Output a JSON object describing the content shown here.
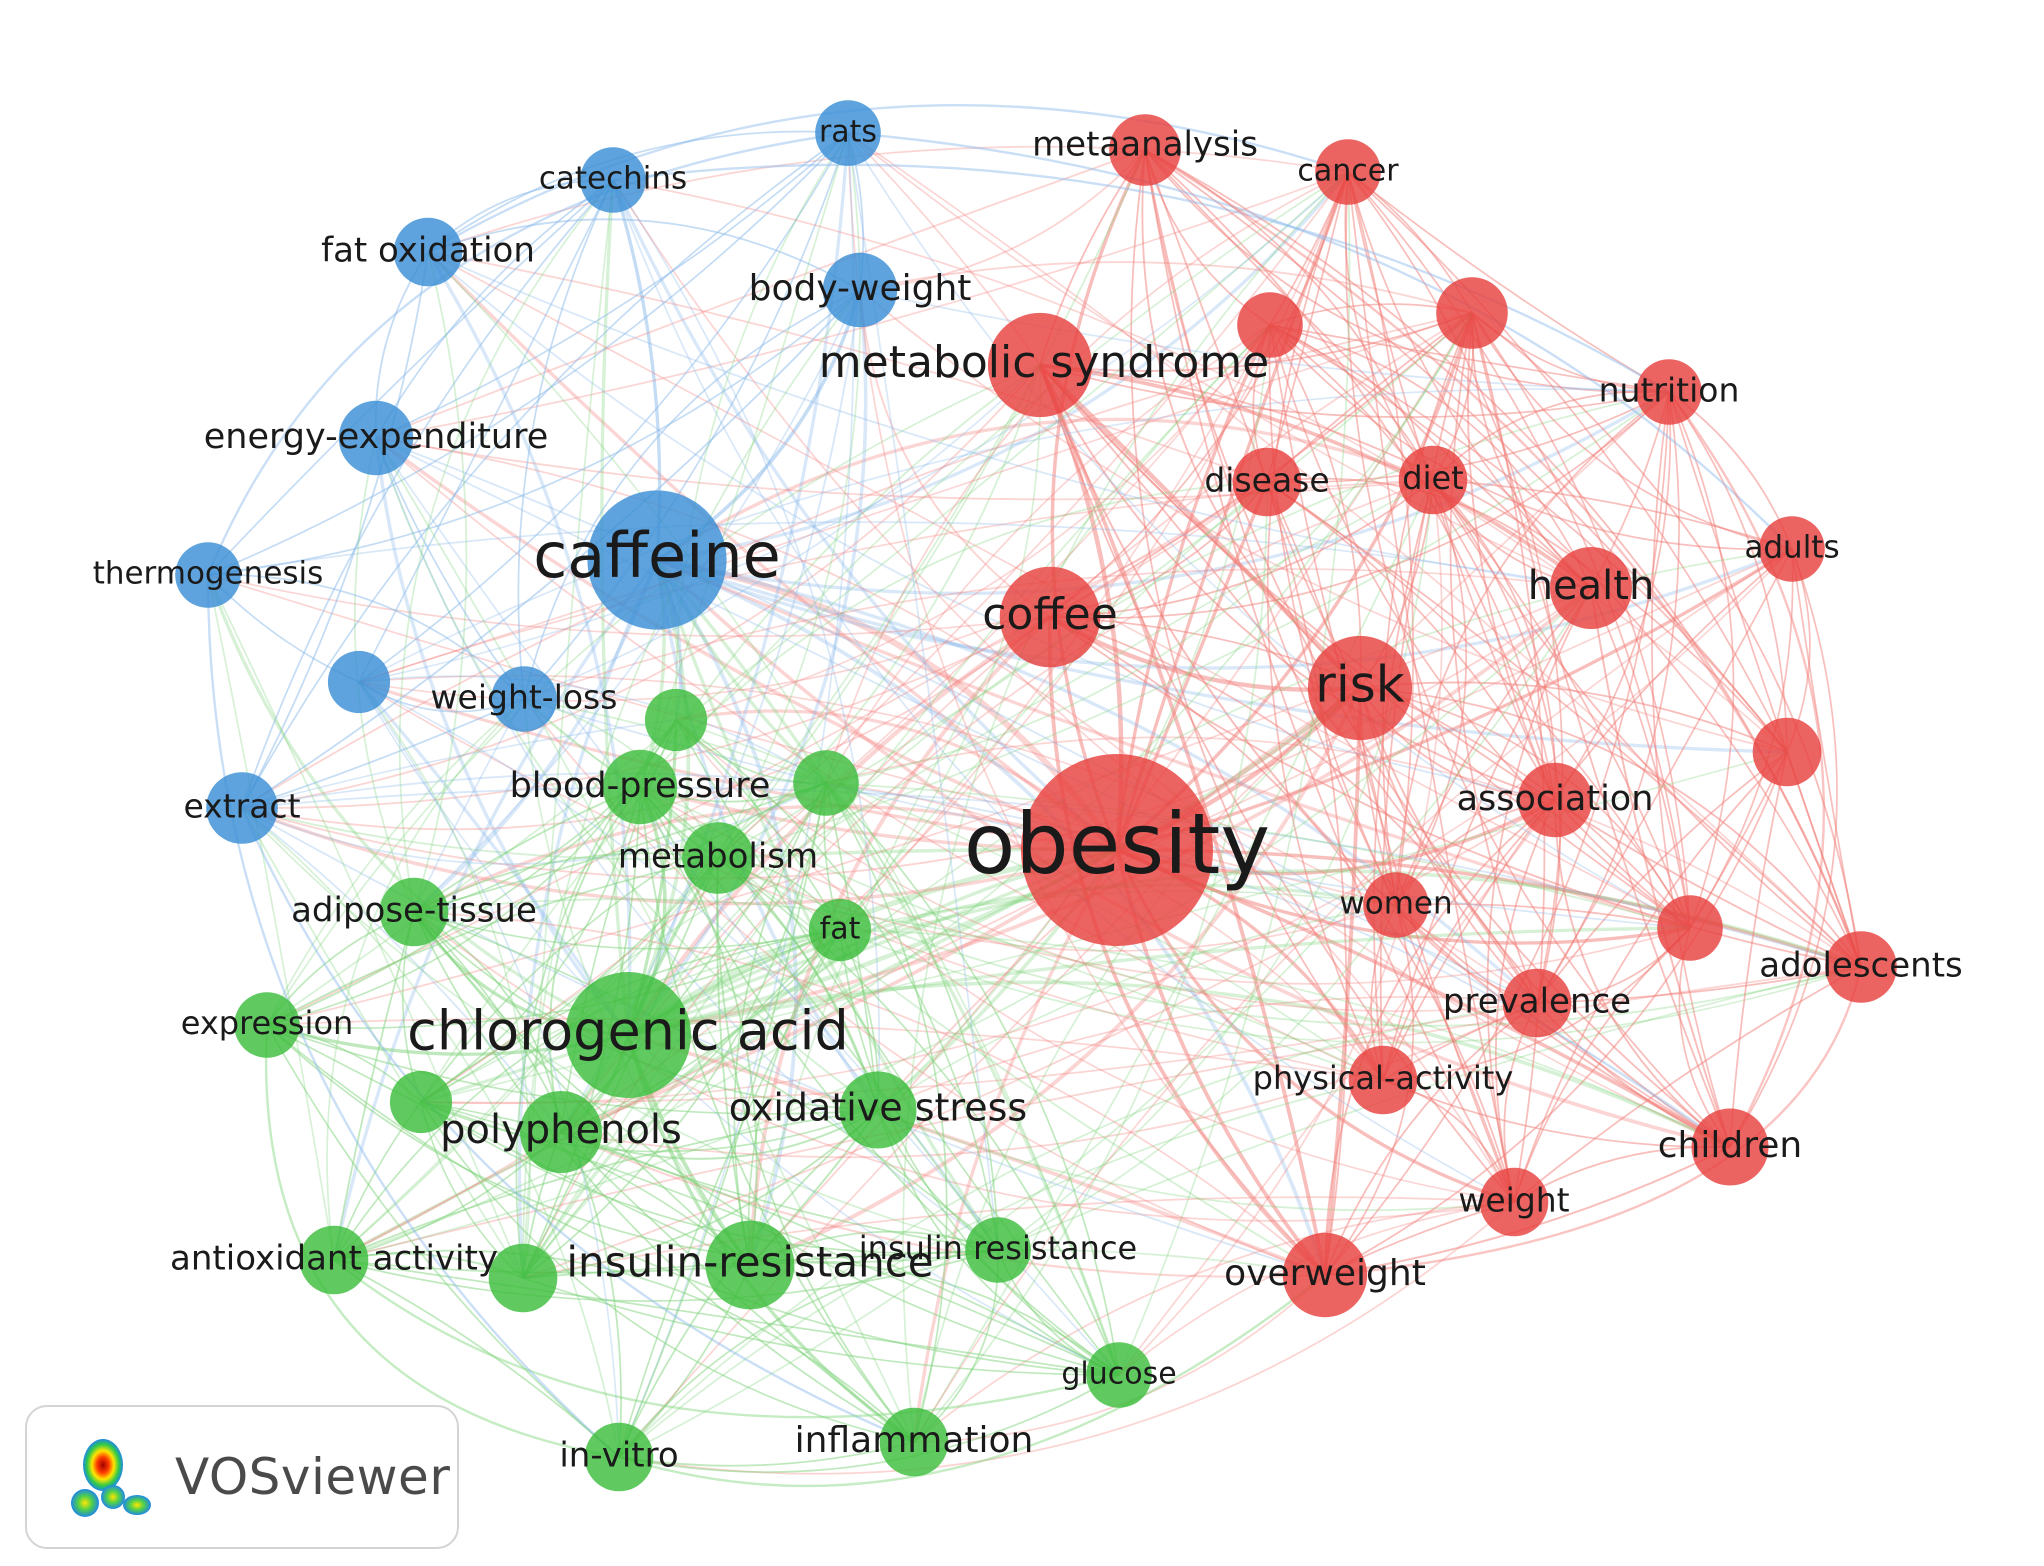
{
  "brand": {
    "name": "VOSviewer"
  },
  "colors": {
    "red": "#e8423f",
    "green": "#3dbd3d",
    "blue": "#3b8fd6",
    "red_link": "#f27d78",
    "green_link": "#7fd47b",
    "blue_link": "#8ab9ea"
  },
  "nodes": [
    {
      "id": "obesity",
      "label": "obesity",
      "cluster": "red",
      "weight": 100
    },
    {
      "id": "caffeine",
      "label": "caffeine",
      "cluster": "blue",
      "weight": 48
    },
    {
      "id": "chlorogenic acid",
      "label": "chlorogenic acid",
      "cluster": "green",
      "weight": 38
    },
    {
      "id": "metabolic syndrome",
      "label": "metabolic syndrome",
      "cluster": "red",
      "weight": 24
    },
    {
      "id": "coffee",
      "label": "coffee",
      "cluster": "red",
      "weight": 22
    },
    {
      "id": "risk",
      "label": "risk",
      "cluster": "red",
      "weight": 24
    },
    {
      "id": "insulin-resistance",
      "label": "insulin-resistance",
      "cluster": "green",
      "weight": 16
    },
    {
      "id": "polyphenols",
      "label": "polyphenols",
      "cluster": "green",
      "weight": 13
    },
    {
      "id": "oxidative stress",
      "label": "oxidative stress",
      "cluster": "green",
      "weight": 11
    },
    {
      "id": "metaanalysis",
      "label": "metaanalysis",
      "cluster": "red",
      "weight": 9
    },
    {
      "id": "cancer",
      "label": "cancer",
      "cluster": "red",
      "weight": 7
    },
    {
      "id": "nutrition",
      "label": "nutrition",
      "cluster": "red",
      "weight": 7
    },
    {
      "id": "diet",
      "label": "diet",
      "cluster": "red",
      "weight": 8
    },
    {
      "id": "disease",
      "label": "disease",
      "cluster": "red",
      "weight": 8
    },
    {
      "id": "health",
      "label": "health",
      "cluster": "red",
      "weight": 13
    },
    {
      "id": "adults",
      "label": "adults",
      "cluster": "red",
      "weight": 7
    },
    {
      "id": "association",
      "label": "association",
      "cluster": "red",
      "weight": 10
    },
    {
      "id": "women",
      "label": "women",
      "cluster": "red",
      "weight": 7
    },
    {
      "id": "adolescents",
      "label": "adolescents",
      "cluster": "red",
      "weight": 9
    },
    {
      "id": "prevalence",
      "label": "prevalence",
      "cluster": "red",
      "weight": 8
    },
    {
      "id": "physical-activity",
      "label": "physical-activity",
      "cluster": "red",
      "weight": 8
    },
    {
      "id": "children",
      "label": "children",
      "cluster": "red",
      "weight": 11
    },
    {
      "id": "weight",
      "label": "weight",
      "cluster": "red",
      "weight": 8
    },
    {
      "id": "overweight",
      "label": "overweight",
      "cluster": "red",
      "weight": 14
    },
    {
      "id": "rats",
      "label": "rats",
      "cluster": "blue",
      "weight": 7
    },
    {
      "id": "catechins",
      "label": "catechins",
      "cluster": "blue",
      "weight": 7
    },
    {
      "id": "fat oxidation",
      "label": "fat oxidation",
      "cluster": "blue",
      "weight": 8
    },
    {
      "id": "body-weight",
      "label": "body-weight",
      "cluster": "blue",
      "weight": 10
    },
    {
      "id": "energy-expenditure",
      "label": "energy-expenditure",
      "cluster": "blue",
      "weight": 10
    },
    {
      "id": "thermogenesis",
      "label": "thermogenesis",
      "cluster": "blue",
      "weight": 7
    },
    {
      "id": "weight-loss",
      "label": "weight-loss",
      "cluster": "blue",
      "weight": 7
    },
    {
      "id": "extract",
      "label": "extract",
      "cluster": "blue",
      "weight": 9
    },
    {
      "id": "blood-pressure",
      "label": "blood-pressure",
      "cluster": "green",
      "weight": 10
    },
    {
      "id": "metabolism",
      "label": "metabolism",
      "cluster": "green",
      "weight": 9
    },
    {
      "id": "adipose-tissue",
      "label": "adipose-tissue",
      "cluster": "green",
      "weight": 8
    },
    {
      "id": "fat",
      "label": "fat",
      "cluster": "green",
      "weight": 6
    },
    {
      "id": "expression",
      "label": "expression",
      "cluster": "green",
      "weight": 7
    },
    {
      "id": "insulin resistance",
      "label": "insulin resistance",
      "cluster": "green",
      "weight": 7
    },
    {
      "id": "antioxidant activity",
      "label": "antioxidant activity",
      "cluster": "green",
      "weight": 8
    },
    {
      "id": "glucose",
      "label": "glucose",
      "cluster": "green",
      "weight": 7
    },
    {
      "id": "inflammation",
      "label": "inflammation",
      "cluster": "green",
      "weight": 8
    },
    {
      "id": "in-vitro",
      "label": "in-vitro",
      "cluster": "green",
      "weight": 8
    },
    {
      "id": "red-u1",
      "label": "",
      "cluster": "red",
      "weight": 7
    },
    {
      "id": "red-u2",
      "label": "",
      "cluster": "red",
      "weight": 9
    },
    {
      "id": "red-u3",
      "label": "",
      "cluster": "red",
      "weight": 8
    },
    {
      "id": "red-u4",
      "label": "",
      "cluster": "red",
      "weight": 7
    },
    {
      "id": "blue-u1",
      "label": "",
      "cluster": "blue",
      "weight": 6
    },
    {
      "id": "green-u1",
      "label": "",
      "cluster": "green",
      "weight": 6
    },
    {
      "id": "green-u2",
      "label": "",
      "cluster": "green",
      "weight": 7
    },
    {
      "id": "green-u3",
      "label": "",
      "cluster": "green",
      "weight": 6
    },
    {
      "id": "green-u4",
      "label": "",
      "cluster": "green",
      "weight": 8
    }
  ]
}
